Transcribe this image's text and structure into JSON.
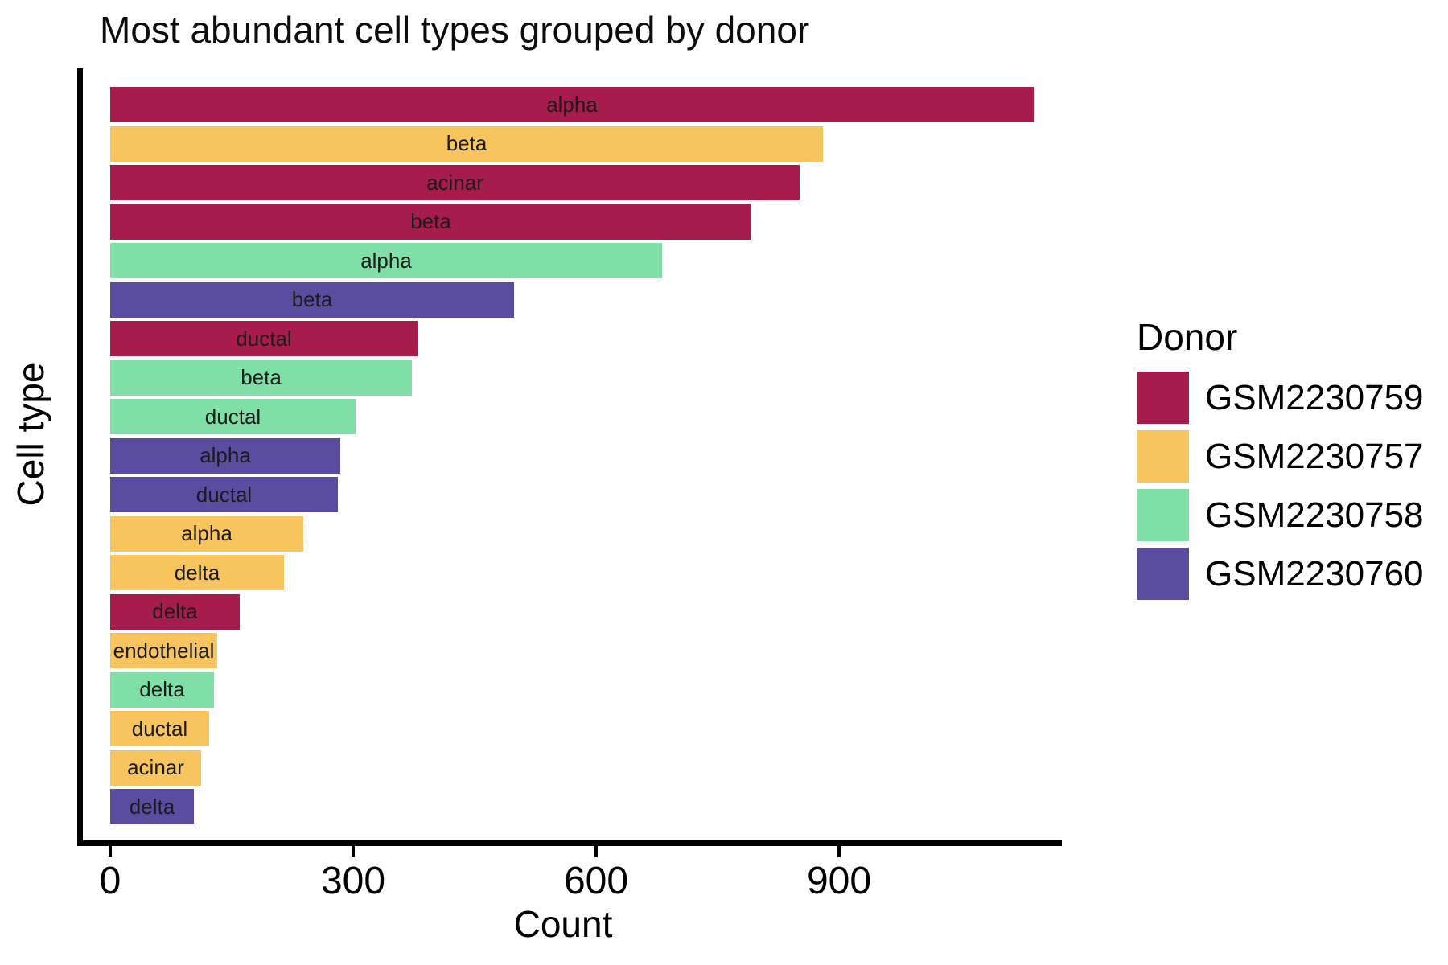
{
  "title": "Most abundant cell types grouped by donor",
  "chart_data": {
    "type": "bar",
    "orientation": "horizontal",
    "title": "Most abundant cell types grouped by donor",
    "xlabel": "Count",
    "ylabel": "Cell type",
    "xlim": [
      0,
      1165
    ],
    "x_ticks": [
      0,
      300,
      600,
      900
    ],
    "grid": false,
    "legend_title": "Donor",
    "legend_position": "right",
    "donors": [
      {
        "name": "GSM2230759",
        "color": "#A61C4D"
      },
      {
        "name": "GSM2230757",
        "color": "#F8C45E"
      },
      {
        "name": "GSM2230758",
        "color": "#80DEA7"
      },
      {
        "name": "GSM2230760",
        "color": "#5A4DA0"
      }
    ],
    "bars": [
      {
        "cell_type": "alpha",
        "donor": "GSM2230759",
        "count": 1140
      },
      {
        "cell_type": "beta",
        "donor": "GSM2230757",
        "count": 880
      },
      {
        "cell_type": "acinar",
        "donor": "GSM2230759",
        "count": 851
      },
      {
        "cell_type": "beta",
        "donor": "GSM2230759",
        "count": 792
      },
      {
        "cell_type": "alpha",
        "donor": "GSM2230758",
        "count": 681
      },
      {
        "cell_type": "beta",
        "donor": "GSM2230760",
        "count": 499
      },
      {
        "cell_type": "ductal",
        "donor": "GSM2230759",
        "count": 379
      },
      {
        "cell_type": "beta",
        "donor": "GSM2230758",
        "count": 373
      },
      {
        "cell_type": "ductal",
        "donor": "GSM2230758",
        "count": 303
      },
      {
        "cell_type": "alpha",
        "donor": "GSM2230760",
        "count": 284
      },
      {
        "cell_type": "ductal",
        "donor": "GSM2230760",
        "count": 281
      },
      {
        "cell_type": "alpha",
        "donor": "GSM2230757",
        "count": 238
      },
      {
        "cell_type": "delta",
        "donor": "GSM2230757",
        "count": 215
      },
      {
        "cell_type": "delta",
        "donor": "GSM2230759",
        "count": 160
      },
      {
        "cell_type": "endothelial",
        "donor": "GSM2230757",
        "count": 132
      },
      {
        "cell_type": "delta",
        "donor": "GSM2230758",
        "count": 128
      },
      {
        "cell_type": "ductal",
        "donor": "GSM2230757",
        "count": 122
      },
      {
        "cell_type": "acinar",
        "donor": "GSM2230757",
        "count": 112
      },
      {
        "cell_type": "delta",
        "donor": "GSM2230760",
        "count": 103
      }
    ]
  }
}
